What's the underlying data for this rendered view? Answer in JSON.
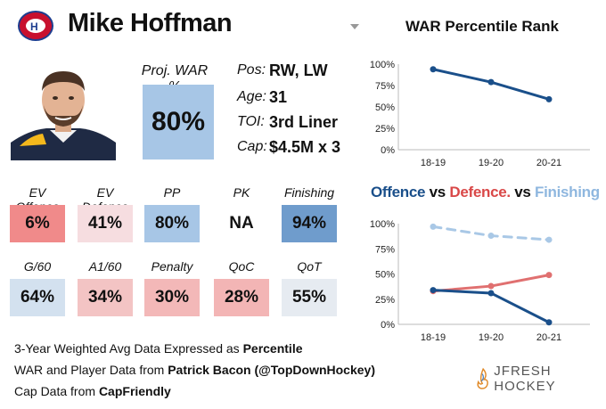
{
  "header": {
    "player_name": "Mike Hoffman"
  },
  "projection": {
    "label": "Proj. WAR %",
    "value": "80%"
  },
  "info": [
    {
      "label": "Pos:",
      "value": "RW, LW"
    },
    {
      "label": "Age:",
      "value": "31"
    },
    {
      "label": "TOI:",
      "value": "3rd Liner"
    },
    {
      "label": "Cap:",
      "value": "$4.5M x 3"
    }
  ],
  "stats_row1": [
    {
      "label": "EV Offence",
      "value": "6%",
      "color": "#f08a8a"
    },
    {
      "label": "EV Defence",
      "value": "41%",
      "color": "#f6dde0"
    },
    {
      "label": "PP",
      "value": "80%",
      "color": "#a7c6e6"
    },
    {
      "label": "PK",
      "value": "NA",
      "color": "#ffffff"
    },
    {
      "label": "Finishing",
      "value": "94%",
      "color": "#6f9ccc"
    }
  ],
  "stats_row2": [
    {
      "label": "G/60",
      "value": "64%",
      "color": "#d3e1ef"
    },
    {
      "label": "A1/60",
      "value": "34%",
      "color": "#f3c4c4"
    },
    {
      "label": "Penalty",
      "value": "30%",
      "color": "#f3b8b8"
    },
    {
      "label": "QoC",
      "value": "28%",
      "color": "#f3b5b5"
    },
    {
      "label": "QoT",
      "value": "55%",
      "color": "#e6ebf1"
    }
  ],
  "footer": {
    "line1_text": "3-Year Weighted Avg Data Expressed as ",
    "line1_bold": "Percentile",
    "line2_text": "WAR and Player Data from ",
    "line2_bold": "Patrick Bacon (@TopDownHockey)",
    "line3_text": "Cap Data from ",
    "line3_bold": "CapFriendly",
    "brand": "JFRESH HOCKEY"
  },
  "chart_data": [
    {
      "type": "line",
      "title": "WAR Percentile Rank",
      "categories": [
        "18-19",
        "19-20",
        "20-21"
      ],
      "ylim": [
        0,
        100
      ],
      "yticks": [
        "0%",
        "25%",
        "50%",
        "75%",
        "100%"
      ],
      "series": [
        {
          "values": [
            94,
            79,
            59
          ],
          "color": "#1a4f8a",
          "dashed": false
        }
      ]
    },
    {
      "type": "line",
      "title_parts": [
        {
          "text": "Offence",
          "color": "#1a4f8a"
        },
        {
          "text": " vs ",
          "color": "#111111"
        },
        {
          "text": "Defence.",
          "color": "#d94848"
        },
        {
          "text": " vs ",
          "color": "#111111"
        },
        {
          "text": "Finishing",
          "color": "#8fb7df"
        }
      ],
      "categories": [
        "18-19",
        "19-20",
        "20-21"
      ],
      "ylim": [
        0,
        100
      ],
      "yticks": [
        "0%",
        "25%",
        "50%",
        "75%",
        "100%"
      ],
      "series": [
        {
          "values": [
            97,
            88,
            84
          ],
          "color": "#a9c8e6",
          "dashed": true
        },
        {
          "values": [
            33,
            38,
            49
          ],
          "color": "#e07070",
          "dashed": false
        },
        {
          "values": [
            34,
            31,
            2
          ],
          "color": "#1a4f8a",
          "dashed": false
        }
      ]
    }
  ]
}
